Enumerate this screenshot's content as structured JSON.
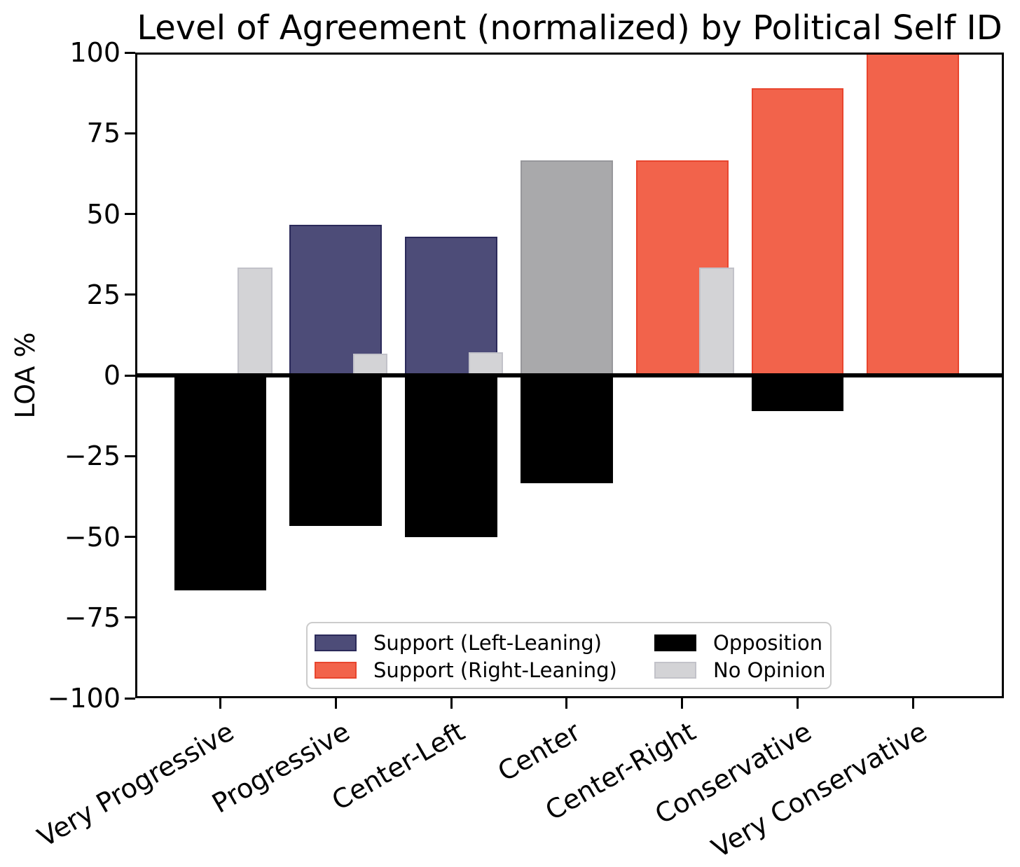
{
  "chart_data": {
    "type": "bar",
    "title": "Level of Agreement (normalized) by Political Self ID",
    "xlabel": "",
    "ylabel": "LOA %",
    "ylim": [
      -100,
      100
    ],
    "yticks": [
      100,
      75,
      50,
      25,
      0,
      -25,
      -50,
      -75,
      -100
    ],
    "grid": false,
    "zero_line": true,
    "legend_position": "lower center, two columns",
    "categories": [
      "Very Progressive",
      "Progressive",
      "Center-Left",
      "Center",
      "Center-Right",
      "Conservative",
      "Very Conservative"
    ],
    "rows": [
      {
        "category": "Very Progressive",
        "support": 0,
        "support_side": "none",
        "opposition": -66.7,
        "no_opinion": 33.3
      },
      {
        "category": "Progressive",
        "support": 46.7,
        "support_side": "left",
        "opposition": -46.7,
        "no_opinion": 6.7
      },
      {
        "category": "Center-Left",
        "support": 42.9,
        "support_side": "left",
        "opposition": -50.0,
        "no_opinion": 7.1
      },
      {
        "category": "Center",
        "support": 66.7,
        "support_side": "neutral",
        "opposition": -33.3,
        "no_opinion": 0
      },
      {
        "category": "Center-Right",
        "support": 66.7,
        "support_side": "right",
        "opposition": 0,
        "no_opinion": 33.3
      },
      {
        "category": "Conservative",
        "support": 88.9,
        "support_side": "right",
        "opposition": -11.1,
        "no_opinion": 0
      },
      {
        "category": "Very Conservative",
        "support": 100,
        "support_side": "right",
        "opposition": 0,
        "no_opinion": 0
      }
    ],
    "colors": {
      "support_left": "#4D4C78",
      "support_left_edge": "#2B2A5A",
      "support_right": "#F2634B",
      "support_right_edge": "#E8452E",
      "support_neutral": "#A9A9AB",
      "support_neutral_edge": "#97979B",
      "opposition": "#000000",
      "opposition_edge": "#000000",
      "no_opinion": "#D3D3D6",
      "no_opinion_edge": "#C2C2C9"
    },
    "legend": {
      "entries": [
        {
          "label": "Support (Left-Leaning)",
          "color_key": "support_left"
        },
        {
          "label": "Support (Right-Leaning)",
          "color_key": "support_right"
        },
        {
          "label": "Opposition",
          "color_key": "opposition"
        },
        {
          "label": "No Opinion",
          "color_key": "no_opinion"
        }
      ]
    }
  }
}
